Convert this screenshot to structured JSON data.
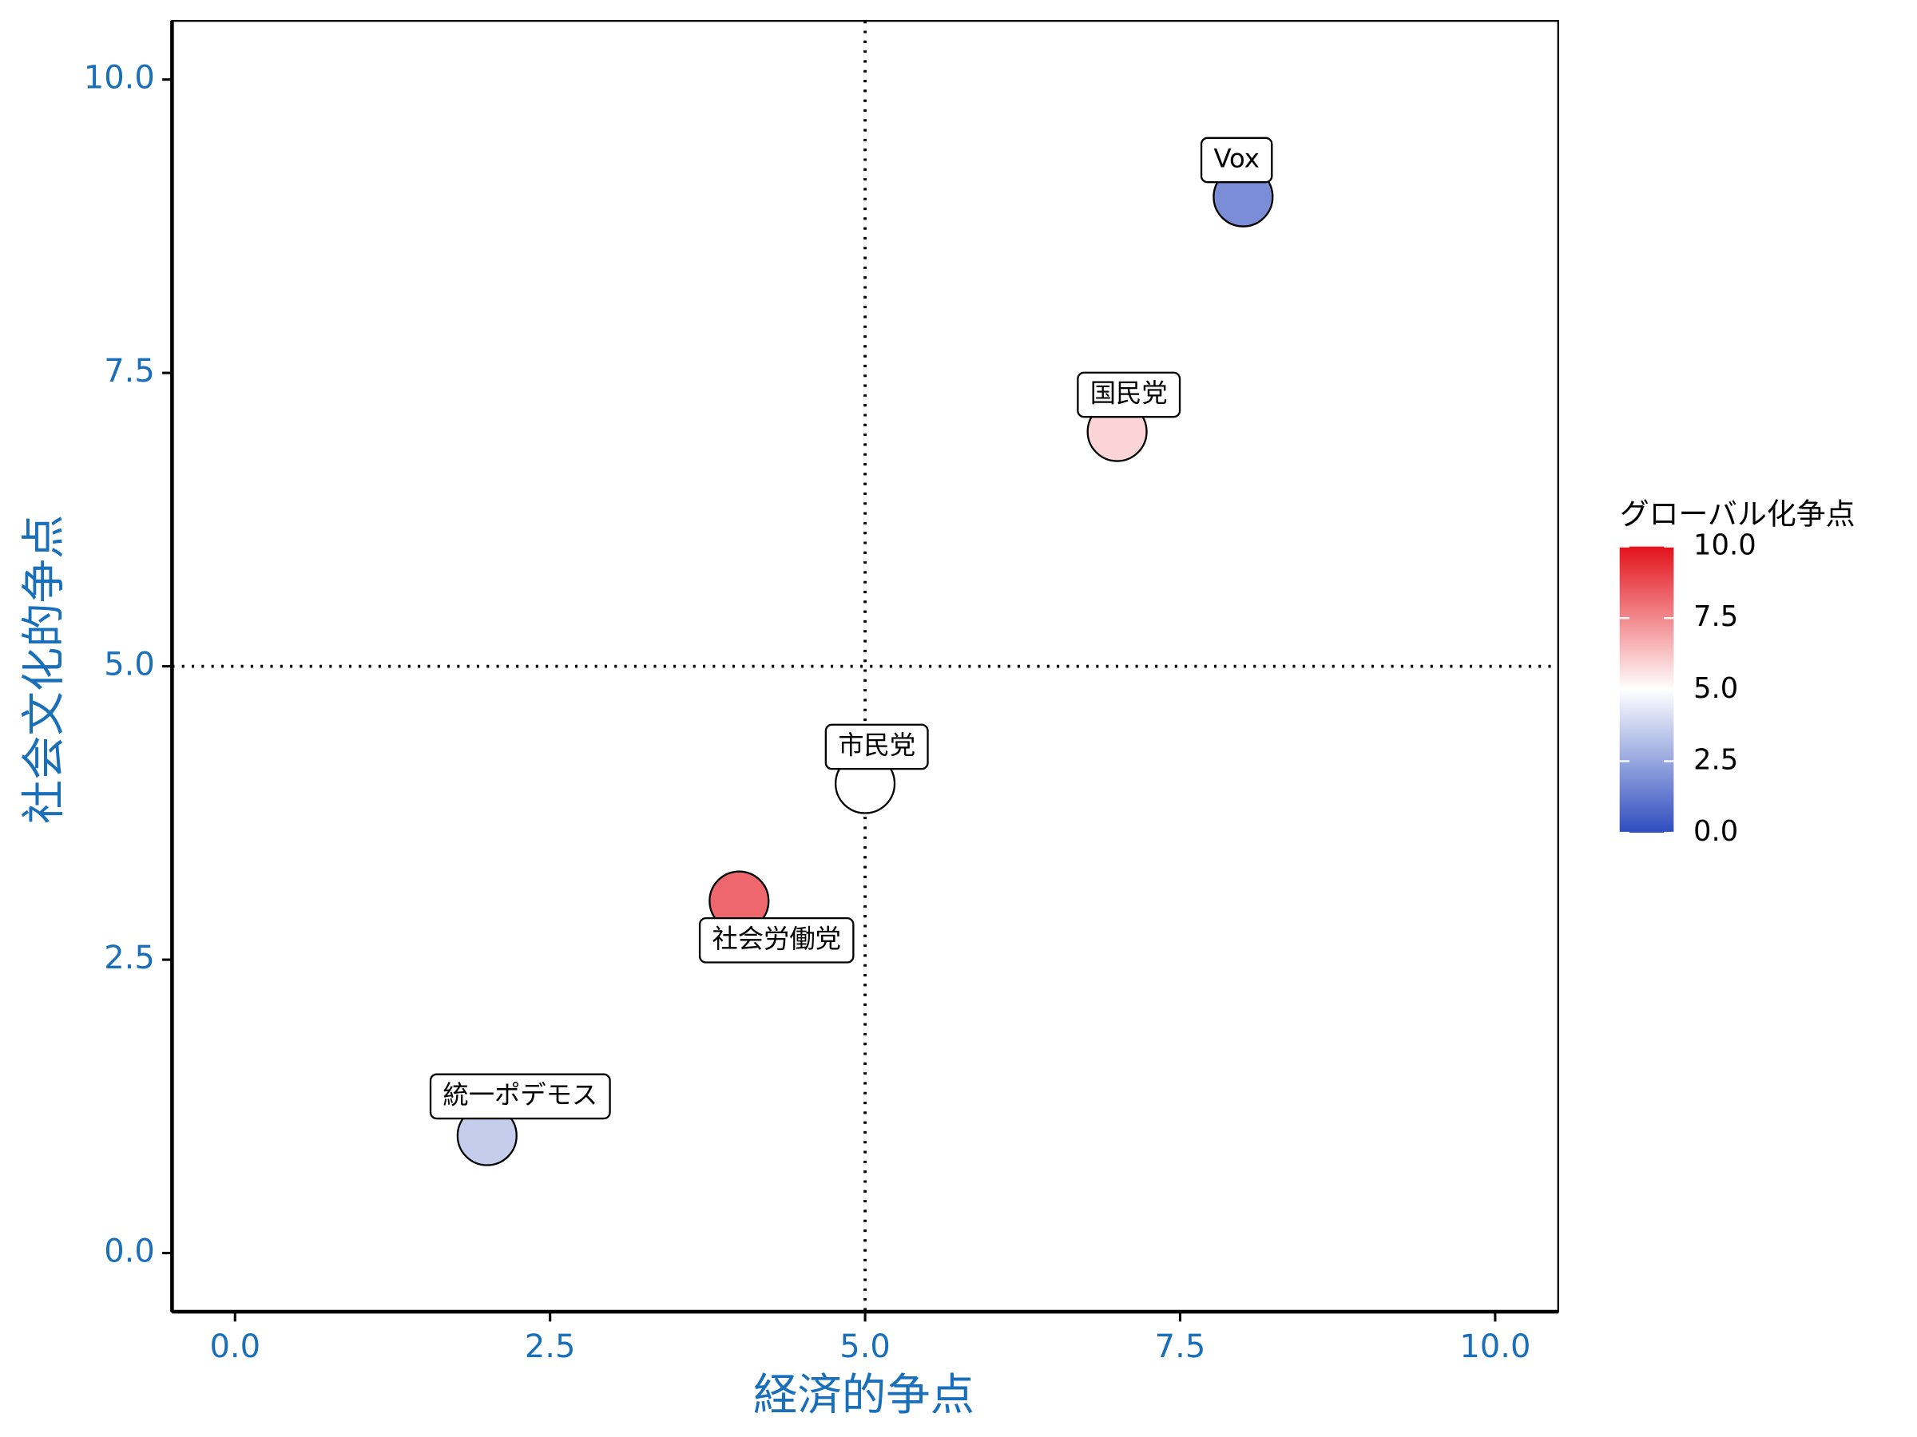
{
  "chart_data": {
    "type": "scatter",
    "x_label": "経済的争点",
    "y_label": "社会文化的争点",
    "xlim": [
      -0.5,
      10.5
    ],
    "ylim": [
      -0.5,
      10.5
    ],
    "xticks": [
      {
        "value": 0,
        "label": "0.0"
      },
      {
        "value": 2.5,
        "label": "2.5"
      },
      {
        "value": 5,
        "label": "5.0"
      },
      {
        "value": 7.5,
        "label": "7.5"
      },
      {
        "value": 10,
        "label": "10.0"
      }
    ],
    "yticks": [
      {
        "value": 0,
        "label": "0.0"
      },
      {
        "value": 2.5,
        "label": "2.5"
      },
      {
        "value": 5,
        "label": "5.0"
      },
      {
        "value": 7.5,
        "label": "7.5"
      },
      {
        "value": 10,
        "label": "10.0"
      }
    ],
    "reference_lines": {
      "x": 5,
      "y": 5
    },
    "labels": [
      "統一ポデモス",
      "社会労働党",
      "市民党",
      "国民党",
      "Vox"
    ],
    "x": [
      2,
      4,
      5,
      7,
      8
    ],
    "y": [
      1,
      3,
      4,
      7,
      9
    ],
    "color_values": [
      3.6,
      8.2,
      5,
      5.9,
      1.8
    ],
    "color_scale": {
      "title": "グローバル化争点",
      "low": "#2f4dbf",
      "mid": "#ffffff",
      "high": "#e3121b",
      "limits": [
        0,
        10
      ],
      "ticks": [
        {
          "value": 0,
          "label": "0.0"
        },
        {
          "value": 2.5,
          "label": "2.5"
        },
        {
          "value": 5,
          "label": "5.0"
        },
        {
          "value": 7.5,
          "label": "7.5"
        },
        {
          "value": 10,
          "label": "10.0"
        }
      ]
    }
  }
}
